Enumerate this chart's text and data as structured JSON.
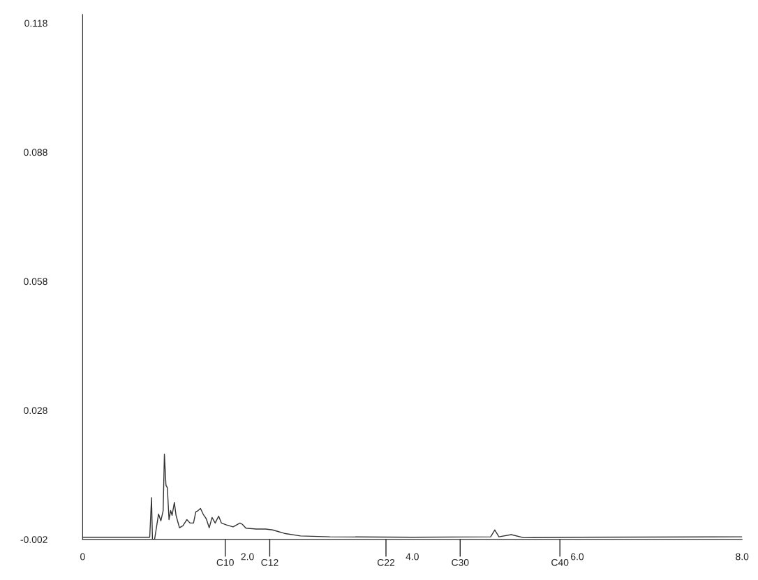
{
  "chart_data": {
    "type": "line",
    "color": "#333333",
    "x": [
      0,
      0.8,
      0.814,
      0.836,
      0.847,
      0.873,
      0.921,
      0.949,
      0.977,
      0.992,
      1.011,
      1.028,
      1.048,
      1.068,
      1.085,
      1.113,
      1.133,
      1.175,
      1.218,
      1.265,
      1.303,
      1.345,
      1.373,
      1.401,
      1.43,
      1.464,
      1.5,
      1.536,
      1.57,
      1.608,
      1.65,
      1.684,
      1.74,
      1.825,
      1.909,
      1.938,
      1.981,
      2.108,
      2.22,
      2.305,
      2.447,
      2.644,
      3.0,
      4.0,
      4.95,
      5.0,
      5.05,
      5.2,
      5.35,
      6.0,
      8.0
    ],
    "values": [
      -0.0015,
      -0.0015,
      -0.0015,
      0.0077,
      -0.002,
      -0.002,
      0.0039,
      0.0023,
      0.0047,
      0.0178,
      0.0106,
      0.01,
      0.0026,
      0.0047,
      0.0036,
      0.0066,
      0.0036,
      0.0007,
      0.0012,
      0.0026,
      0.0018,
      0.0018,
      0.0044,
      0.0047,
      0.0052,
      0.0038,
      0.0028,
      0.0007,
      0.0031,
      0.0018,
      0.0034,
      0.0018,
      0.0014,
      0.0009,
      0.0018,
      0.0015,
      0.0006,
      0.0004,
      0.0004,
      0.0002,
      -0.0006,
      -0.0012,
      -0.0014,
      -0.0015,
      -0.0014,
      0.0002,
      -0.0014,
      -0.0009,
      -0.0016,
      -0.0015,
      -0.0014
    ],
    "xlim": [
      0,
      8.0
    ],
    "ylim": [
      -0.002,
      0.12
    ],
    "xticks": [
      0,
      {
        "value": 2,
        "label": "2.0"
      },
      {
        "value": 4,
        "label": "4.0"
      },
      {
        "value": 6,
        "label": "6.0"
      },
      {
        "value": 8,
        "label": "8.0"
      }
    ],
    "yticks": [
      -0.002,
      0.028,
      0.058,
      0.088,
      0.118
    ],
    "ref_lines": [
      {
        "axis": "x",
        "value": 1.73,
        "label": "C10"
      },
      {
        "axis": "x",
        "value": 2.27,
        "label": "C12"
      },
      {
        "axis": "x",
        "value": 3.68,
        "label": "C22"
      },
      {
        "axis": "x",
        "value": 4.58,
        "label": "C30"
      },
      {
        "axis": "x",
        "value": 5.79,
        "label": "C40"
      }
    ]
  }
}
